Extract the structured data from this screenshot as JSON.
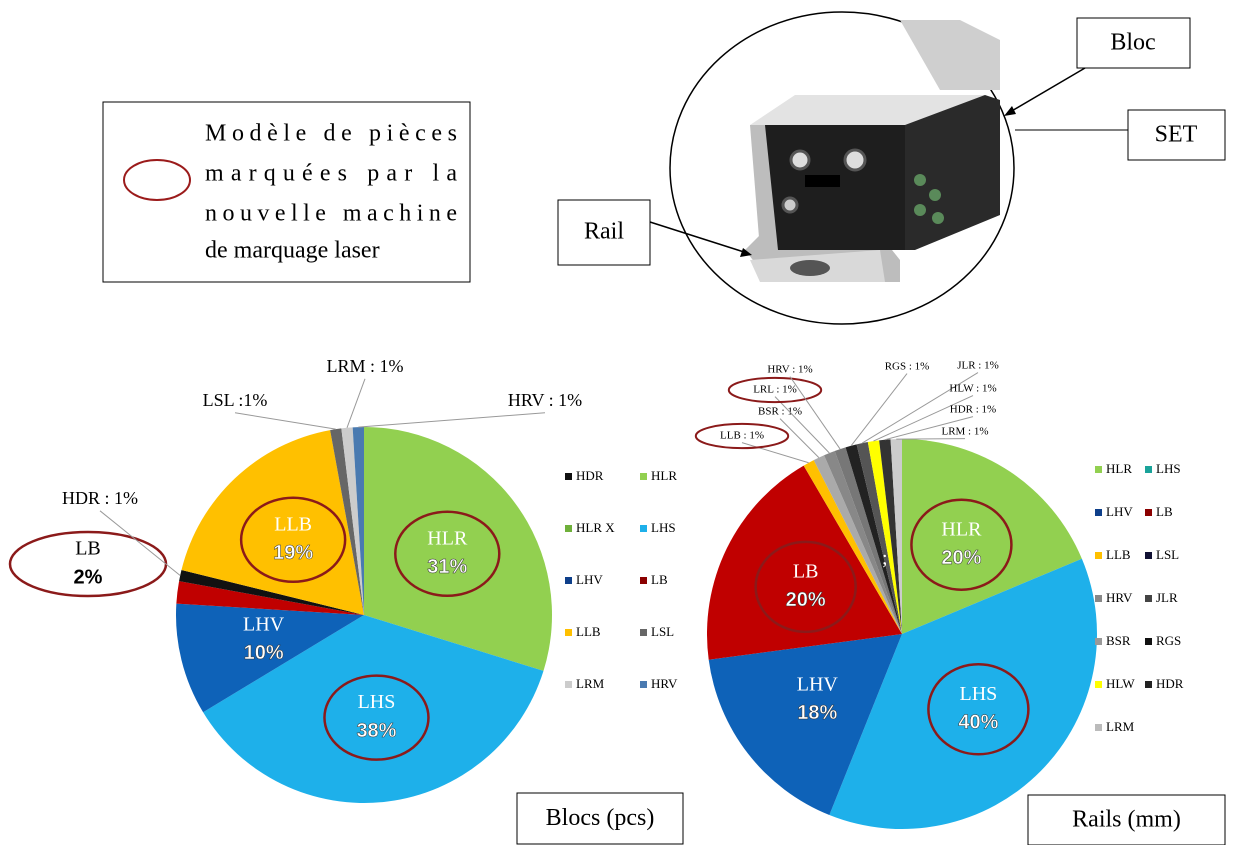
{
  "key": {
    "lines": [
      "Modèle de pièces",
      "marquées par la",
      "nouvelle machine",
      "de marquage laser"
    ]
  },
  "diagram": {
    "labels": [
      "Bloc",
      "SET",
      "Rail"
    ]
  },
  "chart_data": [
    {
      "type": "pie",
      "title": "Blocs (pcs)",
      "categories": [
        "HLR",
        "LHS",
        "LHV",
        "LB",
        null,
        "LLB",
        null,
        null,
        null
      ],
      "values": [
        31,
        38,
        10,
        2,
        1,
        19,
        1,
        1,
        1
      ],
      "value_labels": [
        "31%",
        "38%",
        "10%",
        "2%",
        null,
        "19%",
        null,
        null,
        null
      ],
      "outside_labels": [
        null,
        null,
        null,
        null,
        "HDR : 1%",
        null,
        "LSL :1%",
        "LRM : 1%",
        "HRV : 1%"
      ],
      "colors": [
        "#92d050",
        "#1eb0ea",
        "#0e62b8",
        "#c00000",
        "#111111",
        "#ffc000",
        "#666666",
        "#cccccc",
        "#4a7ab0"
      ],
      "highlight": [
        true,
        true,
        false,
        true,
        false,
        true,
        false,
        false,
        false
      ],
      "legend": [
        {
          "name": "HDR",
          "color": "#111111"
        },
        {
          "name": "HLR",
          "color": "#92d050"
        },
        {
          "name": "HLR X",
          "color": "#6fb03a"
        },
        {
          "name": "LHS",
          "color": "#1eb0ea"
        },
        {
          "name": "LHV",
          "color": "#0e3f8a"
        },
        {
          "name": "LB",
          "color": "#8b0000"
        },
        {
          "name": "LLB",
          "color": "#ffc000"
        },
        {
          "name": "LSL",
          "color": "#666666"
        },
        {
          "name": "LRM",
          "color": "#cccccc"
        },
        {
          "name": "HRV",
          "color": "#4a7ab0"
        }
      ]
    },
    {
      "type": "pie",
      "title": "Rails (mm)",
      "annotation": ";",
      "categories": [
        "HLR",
        "LHS",
        "LHV",
        "LB",
        null,
        null,
        null,
        null,
        null,
        null,
        null,
        null,
        null
      ],
      "values": [
        20,
        40,
        18,
        20,
        1,
        1,
        1,
        1,
        1,
        1,
        1,
        1,
        1
      ],
      "value_labels": [
        "20%",
        "40%",
        "18%",
        "20%",
        null,
        null,
        null,
        null,
        null,
        null,
        null,
        null,
        null
      ],
      "outside_labels": [
        null,
        null,
        null,
        null,
        "LLB : 1%",
        "BSR : 1%",
        "LRL : 1%",
        "HRV : 1%",
        "RGS : 1%",
        "JLR : 1%",
        "HLW : 1%",
        "HDR : 1%",
        "LRM : 1%"
      ],
      "colors": [
        "#92d050",
        "#1eb0ea",
        "#0e62b8",
        "#c00000",
        "#ffc000",
        "#aaaaaa",
        "#888888",
        "#777777",
        "#222222",
        "#555555",
        "#ffff00",
        "#333333",
        "#cccccc"
      ],
      "highlight": [
        true,
        true,
        false,
        true,
        true,
        false,
        true,
        false,
        false,
        false,
        false,
        false,
        false
      ],
      "legend": [
        {
          "name": "HLR",
          "color": "#92d050"
        },
        {
          "name": "LHS",
          "color": "#1aa39a"
        },
        {
          "name": "LHV",
          "color": "#0e3f8a"
        },
        {
          "name": "LB",
          "color": "#8b0000"
        },
        {
          "name": "LLB",
          "color": "#ffc000"
        },
        {
          "name": "LSL",
          "color": "#111133"
        },
        {
          "name": "HRV",
          "color": "#888888"
        },
        {
          "name": "JLR",
          "color": "#444444"
        },
        {
          "name": "BSR",
          "color": "#999999"
        },
        {
          "name": "RGS",
          "color": "#111111"
        },
        {
          "name": "HLW",
          "color": "#ffff00"
        },
        {
          "name": "HDR",
          "color": "#222222"
        },
        {
          "name": "LRM",
          "color": "#bbbbbb"
        }
      ]
    }
  ]
}
